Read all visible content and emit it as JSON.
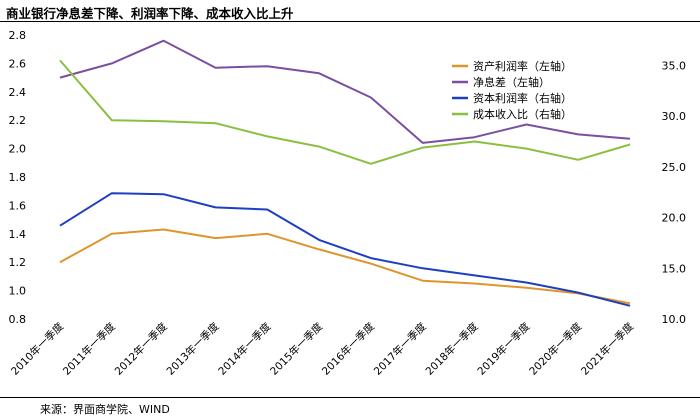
{
  "title": "商业银行净息差下降、利润率下降、成本收入比上升",
  "source": "来源：界面商学院、WIND",
  "chart_data": {
    "type": "line",
    "categories": [
      "2010年一季度",
      "2011年一季度",
      "2012年一季度",
      "2013年一季度",
      "2014年一季度",
      "2015年一季度",
      "2016年一季度",
      "2017年一季度",
      "2018年一季度",
      "2019年一季度",
      "2020年一季度",
      "2021年一季度"
    ],
    "left_axis": {
      "ylim": [
        0.8,
        2.8
      ],
      "ticks": [
        "0.8",
        "1.0",
        "1.2",
        "1.4",
        "1.6",
        "1.8",
        "2.0",
        "2.2",
        "2.4",
        "2.6",
        "2.8"
      ]
    },
    "right_axis": {
      "ylim": [
        10.0,
        38.0
      ],
      "ticks": [
        "10.0",
        "15.0",
        "20.0",
        "25.0",
        "30.0",
        "35.0"
      ]
    },
    "series": [
      {
        "name": "资产利润率（左轴）",
        "axis": "left",
        "color": "#E0952A",
        "values": [
          1.2,
          1.4,
          1.43,
          1.37,
          1.4,
          1.29,
          1.19,
          1.07,
          1.05,
          1.02,
          0.98,
          0.91
        ]
      },
      {
        "name": "净息差（左轴）",
        "axis": "left",
        "color": "#7B4FA0",
        "values": [
          2.5,
          2.6,
          2.76,
          2.57,
          2.58,
          2.53,
          2.36,
          2.04,
          2.08,
          2.17,
          2.1,
          2.07
        ]
      },
      {
        "name": "资本利润率（右轴）",
        "axis": "right",
        "color": "#1E3FBF",
        "values": [
          19.2,
          22.4,
          22.3,
          21.0,
          20.8,
          17.8,
          16.0,
          15.0,
          14.3,
          13.6,
          12.6,
          11.3
        ]
      },
      {
        "name": "成本收入比（右轴）",
        "axis": "right",
        "color": "#8CBF3F",
        "values": [
          35.5,
          29.6,
          29.5,
          29.3,
          28.0,
          27.0,
          25.3,
          26.9,
          27.5,
          26.8,
          25.7,
          27.2
        ]
      }
    ]
  }
}
